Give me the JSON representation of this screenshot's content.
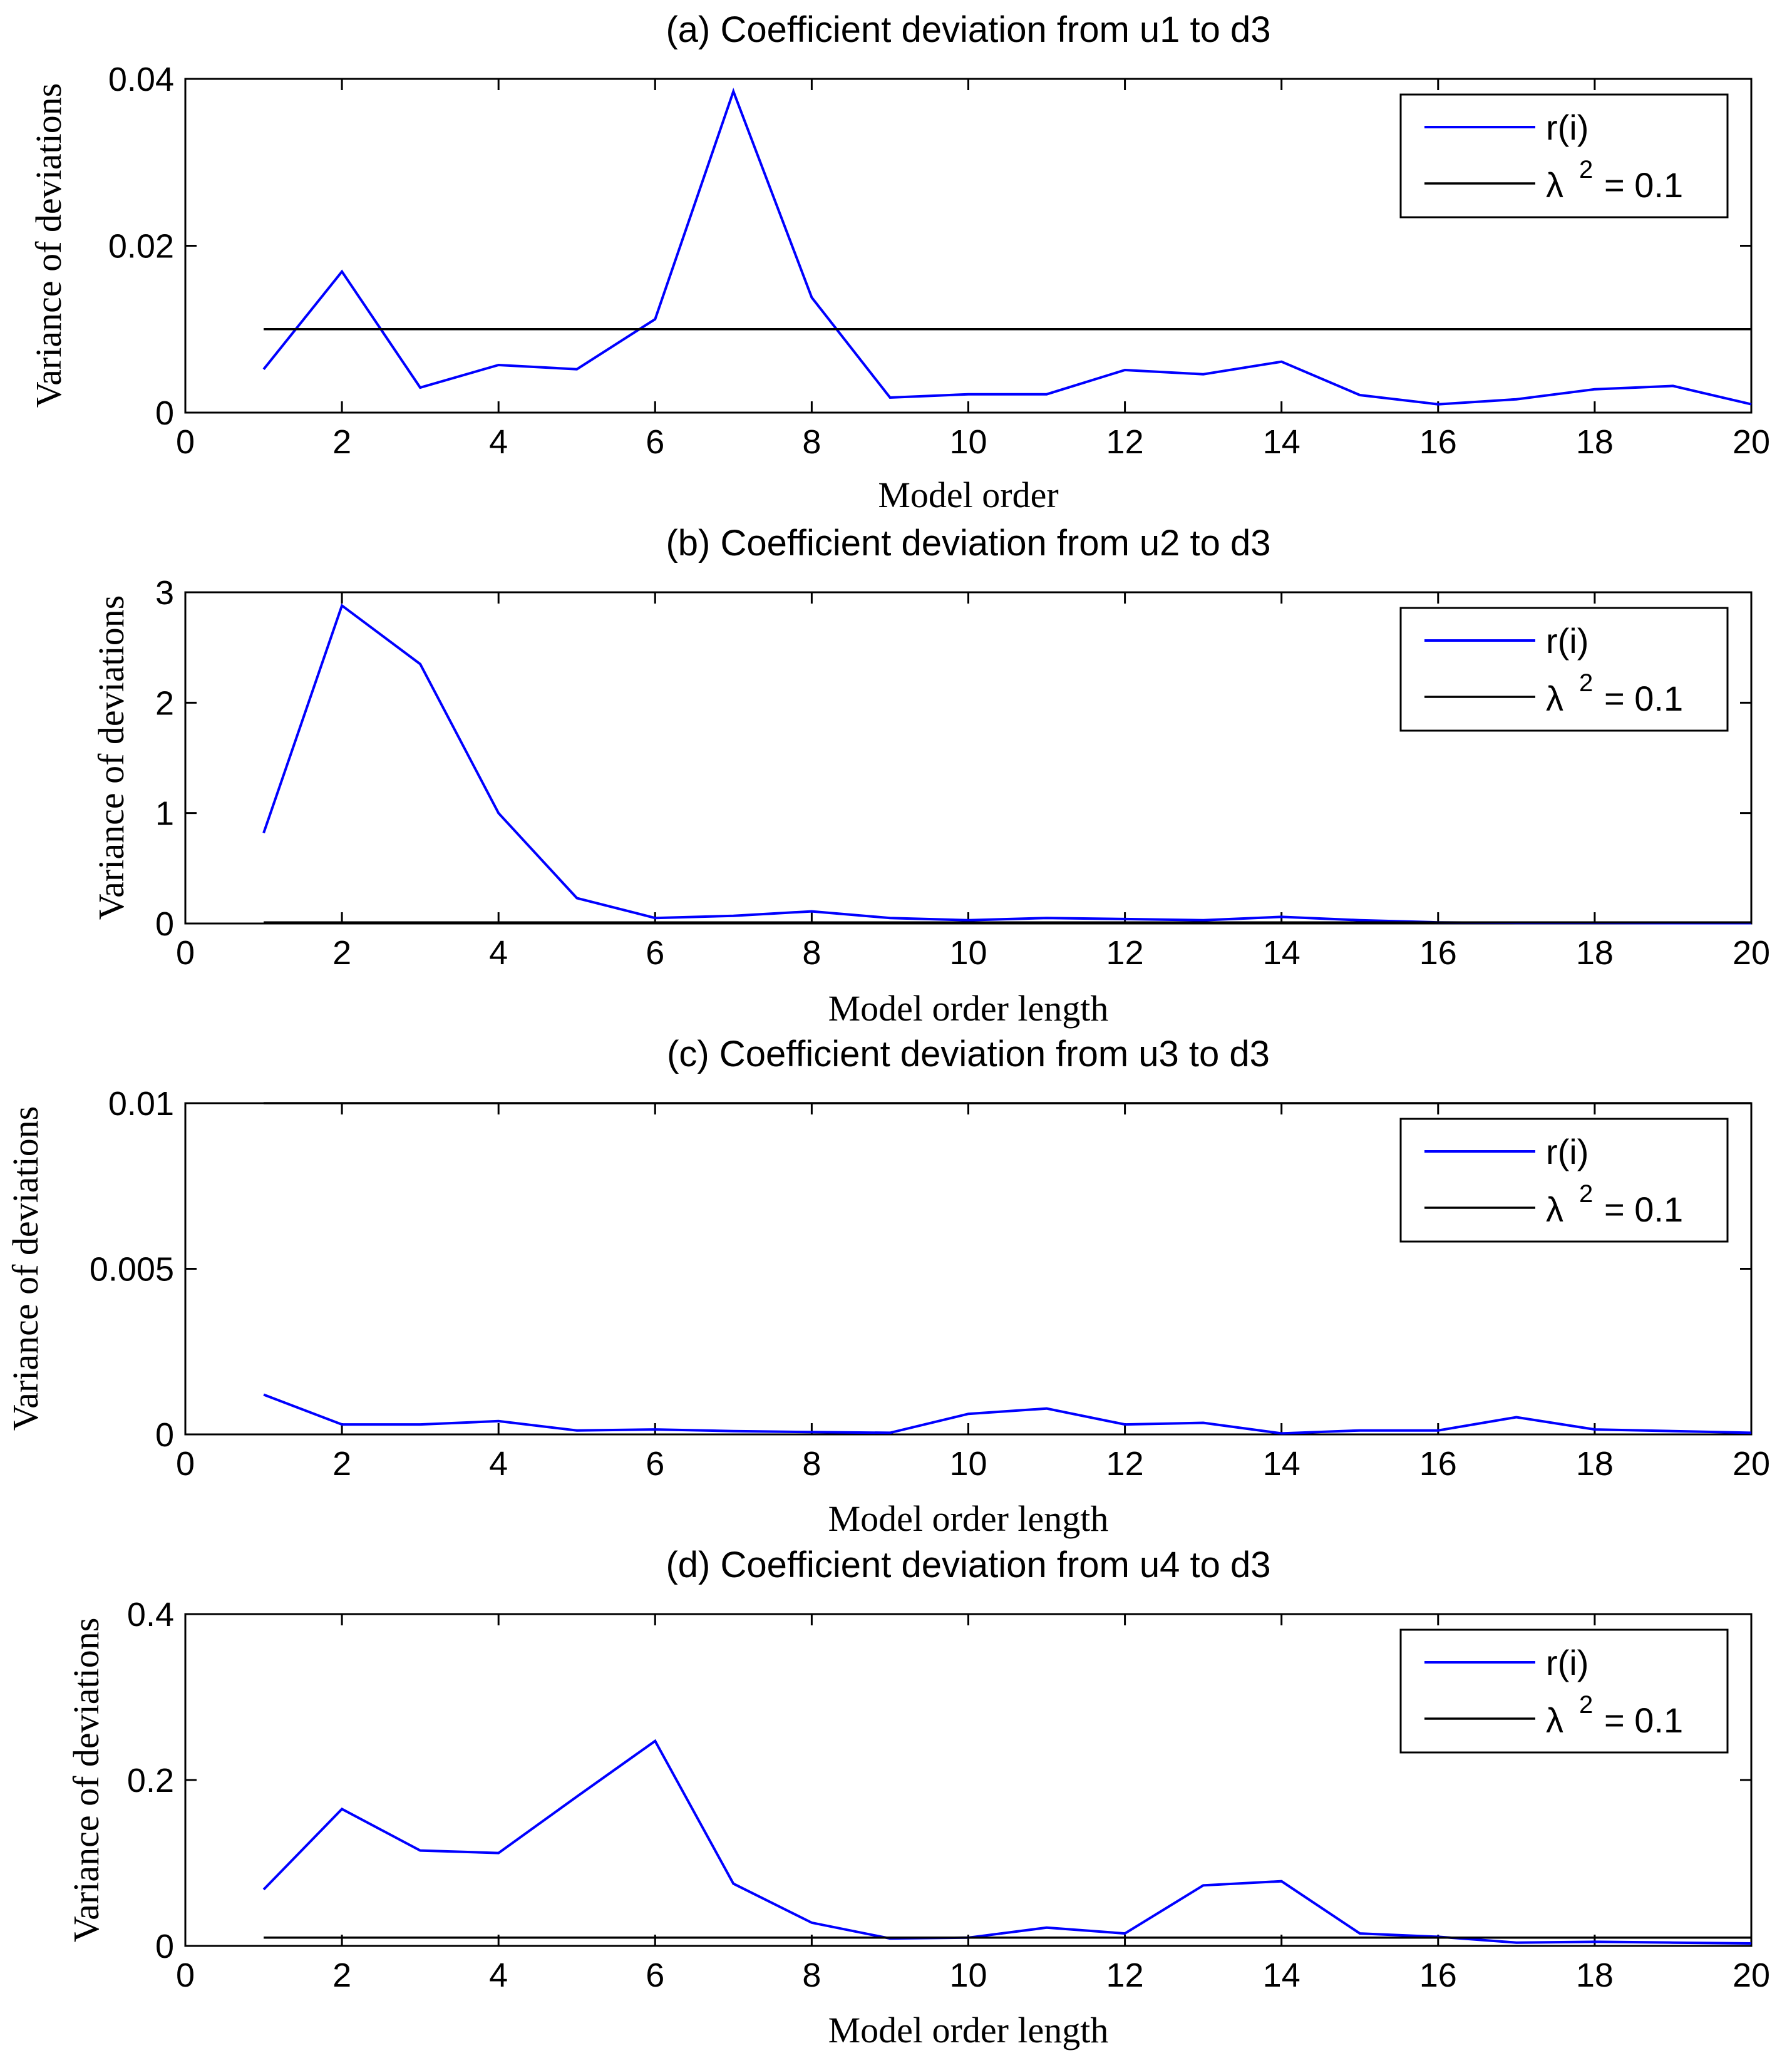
{
  "chart_data": [
    {
      "type": "line",
      "title": "(a) Coefficient deviation from u1 to d3",
      "xlabel": "Model order",
      "ylabel": "Variance of deviations",
      "xlim": [
        0,
        20
      ],
      "ylim": [
        0,
        0.04
      ],
      "xticks": [
        "0",
        "2",
        "4",
        "6",
        "8",
        "10",
        "12",
        "14",
        "16",
        "18",
        "20"
      ],
      "yticks": [
        "0",
        "0.02",
        "0.04"
      ],
      "x": [
        1,
        2,
        3,
        4,
        5,
        6,
        7,
        8,
        9,
        10,
        11,
        12,
        13,
        14,
        15,
        16,
        17,
        18,
        19,
        20
      ],
      "series": [
        {
          "name": "r(i)",
          "color": "#0000ff",
          "values": [
            0.0052,
            0.0169,
            0.003,
            0.0057,
            0.0052,
            0.0112,
            0.0385,
            0.0138,
            0.0018,
            0.0022,
            0.0022,
            0.0051,
            0.0046,
            0.0061,
            0.0021,
            0.001,
            0.0016,
            0.0028,
            0.0032,
            0.001
          ]
        },
        {
          "name": "λ2 = 0.1",
          "color": "#000000",
          "values": [
            0.01,
            0.01,
            0.01,
            0.01,
            0.01,
            0.01,
            0.01,
            0.01,
            0.01,
            0.01,
            0.01,
            0.01,
            0.01,
            0.01,
            0.01,
            0.01,
            0.01,
            0.01,
            0.01,
            0.01
          ]
        }
      ],
      "legend": {
        "placement": "top-right",
        "entry1": "r(i)",
        "lambda": "λ",
        "sup": "2",
        "rest": "= 0.1"
      }
    },
    {
      "type": "line",
      "title": "(b) Coefficient deviation from u2 to d3",
      "xlabel": "Model order length",
      "ylabel": "Variance of deviations",
      "xlim": [
        0,
        20
      ],
      "ylim": [
        0,
        3
      ],
      "xticks": [
        "0",
        "2",
        "4",
        "6",
        "8",
        "10",
        "12",
        "14",
        "16",
        "18",
        "20"
      ],
      "yticks": [
        "0",
        "1",
        "2",
        "3"
      ],
      "x": [
        1,
        2,
        3,
        4,
        5,
        6,
        7,
        8,
        9,
        10,
        11,
        12,
        13,
        14,
        15,
        16,
        17,
        18,
        19,
        20
      ],
      "series": [
        {
          "name": "r(i)",
          "color": "#0000ff",
          "values": [
            0.82,
            2.88,
            2.35,
            1.0,
            0.23,
            0.05,
            0.07,
            0.11,
            0.05,
            0.03,
            0.05,
            0.04,
            0.03,
            0.06,
            0.03,
            0.01,
            0.005,
            0.005,
            0.003,
            0.003
          ]
        },
        {
          "name": "λ2 = 0.1",
          "color": "#000000",
          "values": [
            0.01,
            0.01,
            0.01,
            0.01,
            0.01,
            0.01,
            0.01,
            0.01,
            0.01,
            0.01,
            0.01,
            0.01,
            0.01,
            0.01,
            0.01,
            0.01,
            0.01,
            0.01,
            0.01,
            0.01
          ]
        }
      ],
      "legend": {
        "placement": "top-right",
        "entry1": "r(i)",
        "lambda": "λ",
        "sup": "2",
        "rest": "= 0.1"
      }
    },
    {
      "type": "line",
      "title": "(c) Coefficient deviation from u3 to d3",
      "xlabel": "Model order length",
      "ylabel": "Variance of deviations",
      "xlim": [
        0,
        20
      ],
      "ylim": [
        0,
        0.01
      ],
      "xticks": [
        "0",
        "2",
        "4",
        "6",
        "8",
        "10",
        "12",
        "14",
        "16",
        "18",
        "20"
      ],
      "yticks": [
        "0",
        "0.005",
        "0.01"
      ],
      "x": [
        1,
        2,
        3,
        4,
        5,
        6,
        7,
        8,
        9,
        10,
        11,
        12,
        13,
        14,
        15,
        16,
        17,
        18,
        19,
        20
      ],
      "series": [
        {
          "name": "r(i)",
          "color": "#0000ff",
          "values": [
            0.0012,
            0.0003,
            0.0003,
            0.0004,
            0.00012,
            0.00015,
            0.0001,
            7e-05,
            5e-05,
            0.00062,
            0.00078,
            0.0003,
            0.00035,
            3e-05,
            0.00012,
            0.00012,
            0.00052,
            0.00015,
            0.0001,
            5e-05
          ]
        },
        {
          "name": "λ2 = 0.1",
          "color": "#000000",
          "values": [
            0.01,
            0.01,
            0.01,
            0.01,
            0.01,
            0.01,
            0.01,
            0.01,
            0.01,
            0.01,
            0.01,
            0.01,
            0.01,
            0.01,
            0.01,
            0.01,
            0.01,
            0.01,
            0.01,
            0.01
          ]
        }
      ],
      "legend": {
        "placement": "top-right",
        "entry1": "r(i)",
        "lambda": "λ",
        "sup": "2",
        "rest": "= 0.1"
      }
    },
    {
      "type": "line",
      "title": "(d) Coefficient deviation from u4 to d3",
      "xlabel": "Model order length",
      "ylabel": "Variance of deviations",
      "xlim": [
        0,
        20
      ],
      "ylim": [
        0,
        0.4
      ],
      "xticks": [
        "0",
        "2",
        "4",
        "6",
        "8",
        "10",
        "12",
        "14",
        "16",
        "18",
        "20"
      ],
      "yticks": [
        "0",
        "0.2",
        "0.4"
      ],
      "x": [
        1,
        2,
        3,
        4,
        5,
        6,
        7,
        8,
        9,
        10,
        11,
        12,
        13,
        14,
        15,
        16,
        17,
        18,
        19,
        20
      ],
      "series": [
        {
          "name": "r(i)",
          "color": "#0000ff",
          "values": [
            0.068,
            0.165,
            0.115,
            0.112,
            0.18,
            0.247,
            0.075,
            0.028,
            0.009,
            0.01,
            0.022,
            0.015,
            0.073,
            0.078,
            0.015,
            0.011,
            0.004,
            0.005,
            0.004,
            0.003
          ]
        },
        {
          "name": "λ2 = 0.1",
          "color": "#000000",
          "values": [
            0.01,
            0.01,
            0.01,
            0.01,
            0.01,
            0.01,
            0.01,
            0.01,
            0.01,
            0.01,
            0.01,
            0.01,
            0.01,
            0.01,
            0.01,
            0.01,
            0.01,
            0.01,
            0.01,
            0.01
          ]
        }
      ],
      "legend": {
        "placement": "top-right",
        "entry1": "r(i)",
        "lambda": "λ",
        "sup": "2",
        "rest": "= 0.1"
      }
    }
  ]
}
